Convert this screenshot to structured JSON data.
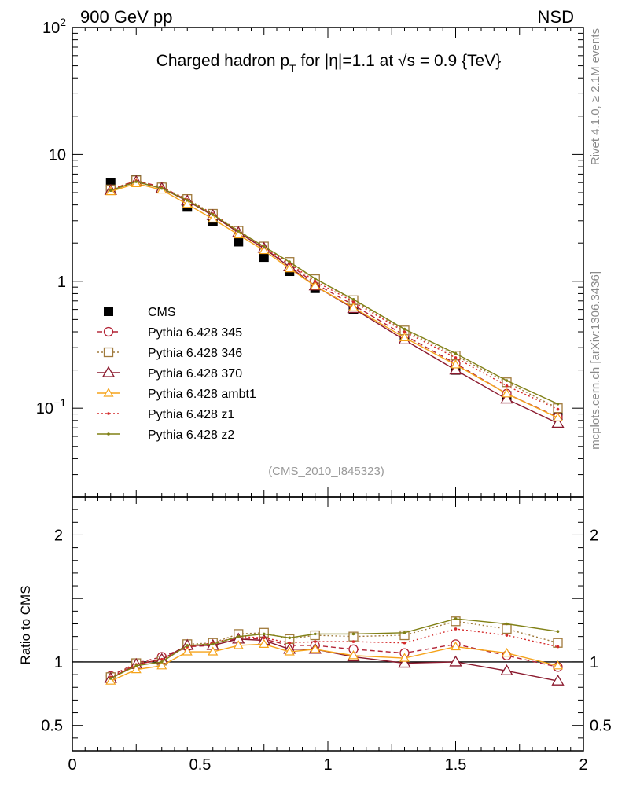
{
  "header": {
    "beam": "900 GeV pp",
    "process": "NSD"
  },
  "side_notes": {
    "rivet": "Rivet 4.1.0, ≥ 2.1M events",
    "source": "mcplots.cern.ch [arXiv:1306.3436]"
  },
  "colors": {
    "data": "#000000",
    "p345": "#b22234",
    "p346": "#a07a3c",
    "p370": "#8b1a2e",
    "ambt1": "#f5a31a",
    "z1": "#d42a2a",
    "z2": "#808015",
    "refline": "#000000"
  },
  "chart_data": [
    {
      "type": "line",
      "title_parts": {
        "pre": "Charged hadron p",
        "sub": "T",
        "mid": " for |η|=1.1 at ",
        "sqrt": "√s",
        "post": " = 0.9 {TeV}"
      },
      "watermark": "(CMS_2010_I845323)",
      "xlim": [
        0,
        2
      ],
      "ylog": true,
      "ylim": [
        0.02,
        100
      ],
      "yticks": [
        {
          "value": 100,
          "base": "10",
          "exp": "2"
        },
        {
          "value": 10,
          "base": "10",
          "exp": ""
        },
        {
          "value": 1,
          "base": "1",
          "exp": ""
        },
        {
          "value": 0.1,
          "base": "10",
          "exp": "−1"
        }
      ],
      "x": [
        0.15,
        0.25,
        0.35,
        0.45,
        0.55,
        0.65,
        0.75,
        0.85,
        0.95,
        1.1,
        1.3,
        1.5,
        1.7,
        1.9
      ],
      "series": [
        {
          "name": "CMS",
          "key": "data",
          "marker": "square-filled",
          "style": "none",
          "values": [
            6.0,
            6.3,
            5.45,
            3.85,
            2.95,
            2.05,
            1.55,
            1.2,
            0.88,
            0.6,
            0.35,
            0.2,
            0.125,
            0.088
          ]
        },
        {
          "name": "Pythia 6.428 345",
          "key": "p345",
          "marker": "circle-open",
          "style": "dashed",
          "values": [
            5.3,
            6.2,
            5.55,
            4.35,
            3.35,
            2.45,
            1.8,
            1.35,
            0.96,
            0.65,
            0.375,
            0.225,
            0.13,
            0.085
          ]
        },
        {
          "name": "Pythia 6.428 346",
          "key": "p346",
          "marker": "square-open",
          "style": "dotted",
          "values": [
            5.3,
            6.25,
            5.5,
            4.45,
            3.4,
            2.5,
            1.88,
            1.42,
            1.04,
            0.71,
            0.41,
            0.26,
            0.16,
            0.1
          ]
        },
        {
          "name": "Pythia 6.428 370",
          "key": "p370",
          "marker": "triangle-open",
          "style": "solid",
          "values": [
            5.2,
            6.1,
            5.4,
            4.3,
            3.3,
            2.42,
            1.82,
            1.3,
            0.92,
            0.61,
            0.345,
            0.2,
            0.118,
            0.076
          ]
        },
        {
          "name": "Pythia 6.428 ambt1",
          "key": "ambt1",
          "marker": "triangle-open-small",
          "style": "solid",
          "values": [
            5.1,
            5.9,
            5.25,
            4.05,
            3.1,
            2.33,
            1.75,
            1.26,
            0.92,
            0.62,
            0.36,
            0.22,
            0.13,
            0.084
          ]
        },
        {
          "name": "Pythia 6.428 z1",
          "key": "z1",
          "marker": "dot",
          "style": "dotted",
          "values": [
            5.25,
            6.2,
            5.5,
            4.4,
            3.4,
            2.5,
            1.85,
            1.38,
            1.0,
            0.69,
            0.4,
            0.25,
            0.15,
            0.098
          ]
        },
        {
          "name": "Pythia 6.428 z2",
          "key": "z2",
          "marker": "dot",
          "style": "solid",
          "values": [
            5.2,
            6.1,
            5.4,
            4.35,
            3.35,
            2.48,
            1.88,
            1.42,
            1.05,
            0.72,
            0.42,
            0.27,
            0.165,
            0.108
          ]
        }
      ]
    },
    {
      "type": "line",
      "ylabel": "Ratio to CMS",
      "xlim": [
        0,
        2
      ],
      "ylim": [
        0.3,
        2.3
      ],
      "yticks": [
        {
          "value": 2,
          "label": "2"
        },
        {
          "value": 1,
          "label": "1"
        },
        {
          "value": 0.5,
          "label": "0.5"
        }
      ],
      "xticks": [
        {
          "value": 0,
          "label": "0"
        },
        {
          "value": 0.5,
          "label": "0.5"
        },
        {
          "value": 1,
          "label": "1"
        },
        {
          "value": 1.5,
          "label": "1.5"
        },
        {
          "value": 2,
          "label": "2"
        }
      ],
      "reference_line": 1,
      "x": [
        0.15,
        0.25,
        0.35,
        0.45,
        0.55,
        0.65,
        0.75,
        0.85,
        0.95,
        1.1,
        1.3,
        1.5,
        1.7,
        1.9
      ],
      "series": [
        {
          "name": "Pythia 6.428 345",
          "key": "p345",
          "marker": "circle-open",
          "style": "dashed",
          "values": [
            0.89,
            0.99,
            1.04,
            1.12,
            1.13,
            1.19,
            1.18,
            1.13,
            1.13,
            1.1,
            1.07,
            1.14,
            1.05,
            0.96
          ]
        },
        {
          "name": "Pythia 6.428 346",
          "key": "p346",
          "marker": "square-open",
          "style": "dotted",
          "values": [
            0.88,
            0.99,
            1.01,
            1.14,
            1.15,
            1.22,
            1.23,
            1.18,
            1.21,
            1.2,
            1.21,
            1.32,
            1.26,
            1.15
          ]
        },
        {
          "name": "Pythia 6.428 370",
          "key": "p370",
          "marker": "triangle-open",
          "style": "solid",
          "values": [
            0.87,
            0.98,
            1.02,
            1.13,
            1.13,
            1.18,
            1.17,
            1.1,
            1.1,
            1.04,
            0.99,
            1.0,
            0.93,
            0.85
          ]
        },
        {
          "name": "Pythia 6.428 ambt1",
          "key": "ambt1",
          "marker": "triangle-open-small",
          "style": "solid",
          "values": [
            0.85,
            0.94,
            0.97,
            1.08,
            1.08,
            1.13,
            1.14,
            1.08,
            1.1,
            1.05,
            1.03,
            1.12,
            1.07,
            0.97
          ]
        },
        {
          "name": "Pythia 6.428 z1",
          "key": "z1",
          "marker": "dot",
          "style": "dotted",
          "values": [
            0.88,
            0.98,
            1.02,
            1.12,
            1.15,
            1.2,
            1.19,
            1.15,
            1.16,
            1.16,
            1.15,
            1.26,
            1.21,
            1.12
          ]
        },
        {
          "name": "Pythia 6.428 z2",
          "key": "z2",
          "marker": "dot",
          "style": "solid",
          "values": [
            0.87,
            0.97,
            1.0,
            1.13,
            1.14,
            1.2,
            1.22,
            1.19,
            1.22,
            1.22,
            1.23,
            1.34,
            1.3,
            1.24
          ]
        }
      ]
    }
  ]
}
